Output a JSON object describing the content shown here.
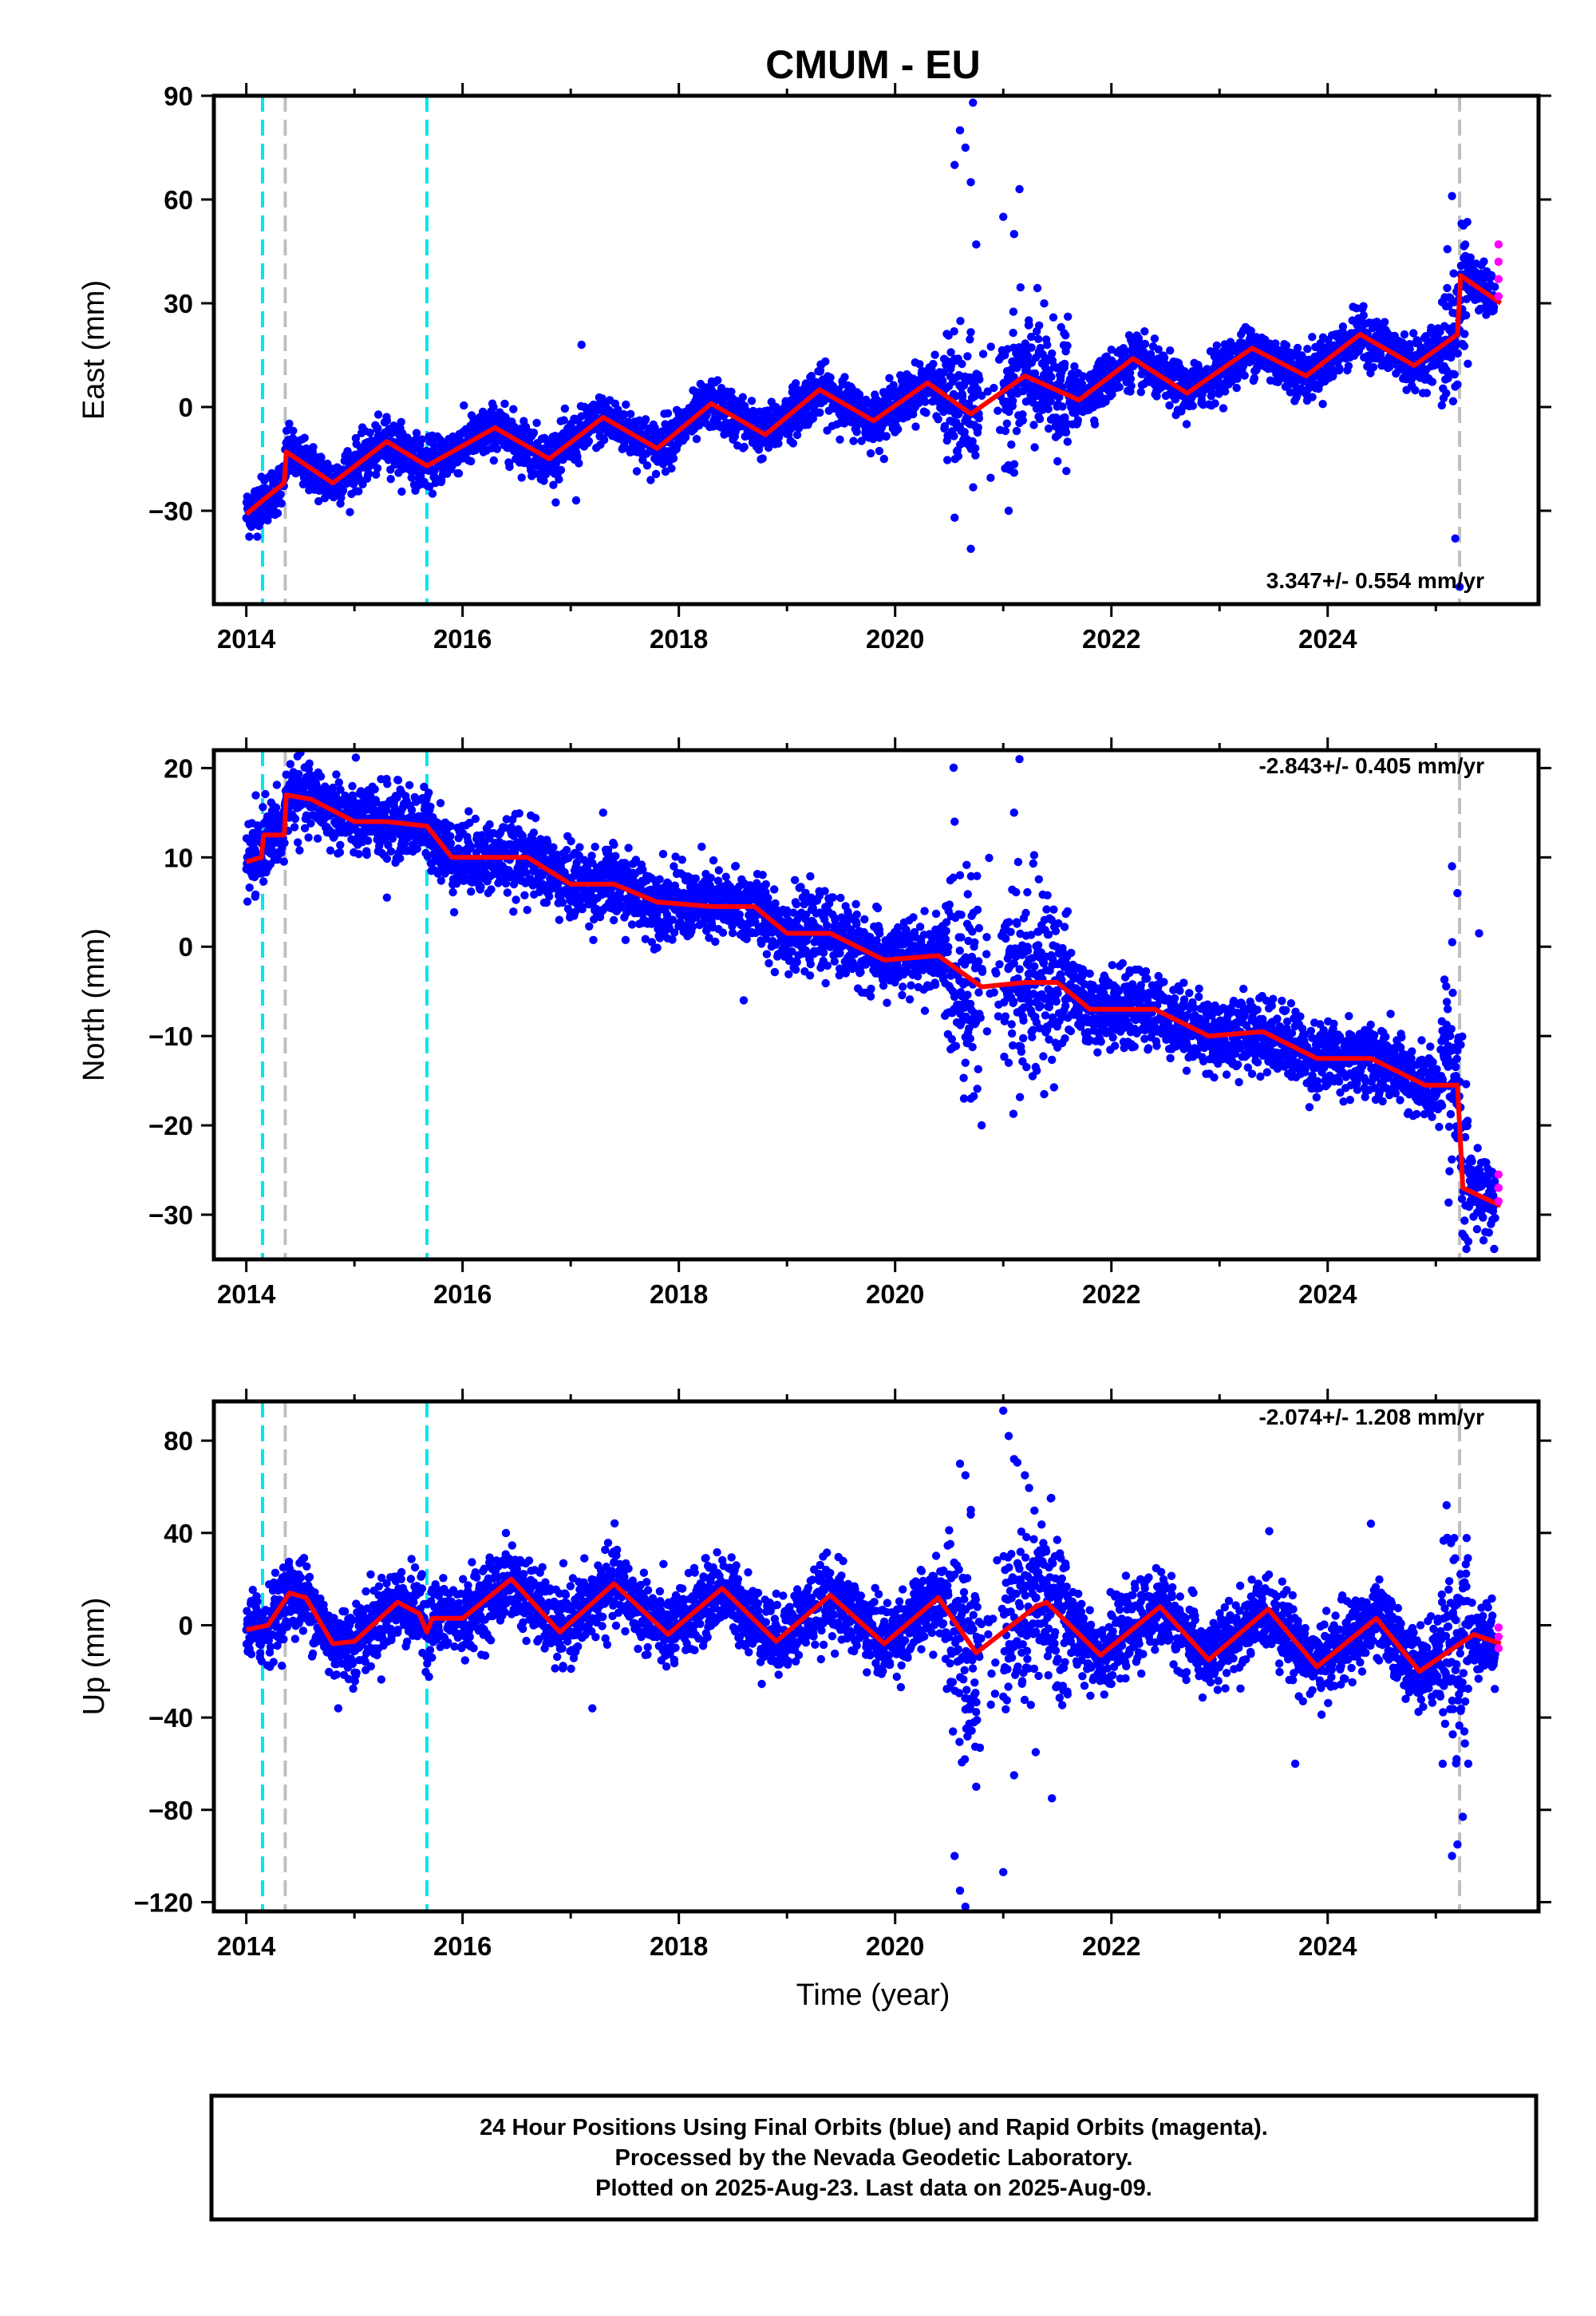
{
  "title": "CMUM - EU",
  "xlabel": "Time (year)",
  "footer": {
    "line1": "24 Hour Positions Using Final Orbits (blue) and Rapid Orbits (magenta).",
    "line2": "Processed by the Nevada Geodetic Laboratory.",
    "line3": "Plotted on 2025-Aug-23. Last data on 2025-Aug-09."
  },
  "colors": {
    "final": "#0000ff",
    "rapid": "#ff00ff",
    "model": "#ff0000",
    "steps_equipment": "#00e5ee",
    "steps_earthquake": "#bfbfbf"
  },
  "chart_data": [
    {
      "type": "scatter",
      "component": "east",
      "ylabel": "East (mm)",
      "rate": "3.347+/- 0.554 mm/yr",
      "xlim": [
        2013.7,
        2025.95
      ],
      "ylim": [
        -57,
        90
      ],
      "xticks": [
        2014,
        2016,
        2018,
        2020,
        2022,
        2024
      ],
      "xtick_labels": [
        "2014",
        "2016",
        "2018",
        "2020",
        "2022",
        "2024"
      ],
      "yticks": [
        -30,
        0,
        30,
        60,
        90
      ],
      "ytick_labels": [
        "−30",
        "0",
        "30",
        "60",
        "90"
      ],
      "equipment_steps": [
        2014.15,
        2015.67
      ],
      "earthquake_steps": [
        2014.36,
        2025.22
      ],
      "trend": {
        "intercept_2014": -26,
        "rate": 3.347
      },
      "seasonal": {
        "amplitude": 5.5,
        "peak_phase": 0.3
      },
      "scatter": 3.5,
      "offsets": [
        {
          "t": 2014.36,
          "dy": 9
        },
        {
          "t": 2025.22,
          "dy": 12
        }
      ],
      "model_points": [
        [
          2014.0,
          -31
        ],
        [
          2014.15,
          -27
        ],
        [
          2014.35,
          -22
        ],
        [
          2014.37,
          -13
        ],
        [
          2014.8,
          -22
        ],
        [
          2015.3,
          -10
        ],
        [
          2015.67,
          -17
        ],
        [
          2016.3,
          -6
        ],
        [
          2016.8,
          -15
        ],
        [
          2017.3,
          -3
        ],
        [
          2017.8,
          -12
        ],
        [
          2018.3,
          1
        ],
        [
          2018.8,
          -8
        ],
        [
          2019.3,
          5
        ],
        [
          2019.8,
          -4
        ],
        [
          2020.3,
          7
        ],
        [
          2020.7,
          -2
        ],
        [
          2021.2,
          9
        ],
        [
          2021.7,
          2
        ],
        [
          2022.2,
          14
        ],
        [
          2022.7,
          4
        ],
        [
          2023.3,
          17
        ],
        [
          2023.8,
          9
        ],
        [
          2024.3,
          21
        ],
        [
          2024.8,
          12
        ],
        [
          2025.2,
          21
        ],
        [
          2025.23,
          38
        ],
        [
          2025.6,
          30
        ]
      ],
      "outliers": [
        [
          2020.55,
          70
        ],
        [
          2020.6,
          80
        ],
        [
          2020.65,
          75
        ],
        [
          2020.7,
          65
        ],
        [
          2020.72,
          88
        ],
        [
          2020.75,
          47
        ],
        [
          2020.55,
          -32
        ],
        [
          2020.7,
          -41
        ],
        [
          2021.0,
          55
        ],
        [
          2021.1,
          50
        ],
        [
          2021.15,
          63
        ],
        [
          2021.05,
          -30
        ],
        [
          2021.1,
          -19
        ],
        [
          2025.15,
          61
        ],
        [
          2025.18,
          -38
        ],
        [
          2025.22,
          -52
        ],
        [
          2017.1,
          18
        ],
        [
          2017.05,
          -27
        ]
      ],
      "rapid_points": [
        [
          2025.58,
          47
        ],
        [
          2025.58,
          42
        ],
        [
          2025.58,
          37
        ],
        [
          2025.58,
          32
        ]
      ]
    },
    {
      "type": "scatter",
      "component": "north",
      "ylabel": "North (mm)",
      "rate": "-2.843+/- 0.405 mm/yr",
      "xlim": [
        2013.7,
        2025.95
      ],
      "ylim": [
        -35,
        22
      ],
      "xticks": [
        2014,
        2016,
        2018,
        2020,
        2022,
        2024
      ],
      "xtick_labels": [
        "2014",
        "2016",
        "2018",
        "2020",
        "2022",
        "2024"
      ],
      "yticks": [
        -30,
        -20,
        -10,
        0,
        10,
        20
      ],
      "ytick_labels": [
        "−30",
        "−20",
        "−10",
        "0",
        "10",
        "20"
      ],
      "equipment_steps": [
        2014.15,
        2015.67
      ],
      "earthquake_steps": [
        2014.36,
        2025.22
      ],
      "scatter": 2.0,
      "model_points": [
        [
          2014.0,
          9.5
        ],
        [
          2014.14,
          10
        ],
        [
          2014.16,
          12.5
        ],
        [
          2014.35,
          12.5
        ],
        [
          2014.37,
          17
        ],
        [
          2014.6,
          16.5
        ],
        [
          2015.0,
          14
        ],
        [
          2015.3,
          14
        ],
        [
          2015.67,
          13.5
        ],
        [
          2015.9,
          10
        ],
        [
          2016.3,
          10
        ],
        [
          2016.6,
          10
        ],
        [
          2017.0,
          7
        ],
        [
          2017.4,
          7
        ],
        [
          2017.8,
          5
        ],
        [
          2018.3,
          4.5
        ],
        [
          2018.7,
          4.5
        ],
        [
          2019.0,
          1.5
        ],
        [
          2019.4,
          1.5
        ],
        [
          2019.9,
          -1.5
        ],
        [
          2020.4,
          -1
        ],
        [
          2020.8,
          -4.5
        ],
        [
          2021.2,
          -4
        ],
        [
          2021.5,
          -4
        ],
        [
          2021.8,
          -7
        ],
        [
          2022.4,
          -7
        ],
        [
          2022.9,
          -10
        ],
        [
          2023.4,
          -9.5
        ],
        [
          2023.9,
          -12.5
        ],
        [
          2024.4,
          -12.5
        ],
        [
          2024.9,
          -15.5
        ],
        [
          2025.2,
          -15.5
        ],
        [
          2025.25,
          -27
        ],
        [
          2025.6,
          -29
        ]
      ],
      "outliers": [
        [
          2020.55,
          14
        ],
        [
          2020.6,
          8
        ],
        [
          2020.65,
          -13
        ],
        [
          2020.7,
          -17
        ],
        [
          2020.8,
          -20
        ],
        [
          2021.1,
          15
        ],
        [
          2021.15,
          21
        ],
        [
          2021.05,
          -13
        ],
        [
          2025.15,
          9
        ],
        [
          2025.2,
          6
        ],
        [
          2025.4,
          1.5
        ],
        [
          2025.3,
          -33
        ],
        [
          2015.3,
          5.5
        ],
        [
          2017.3,
          15
        ],
        [
          2018.6,
          -6
        ]
      ],
      "rapid_points": [
        [
          2025.58,
          -25.5
        ],
        [
          2025.58,
          -27
        ],
        [
          2025.58,
          -28.5
        ]
      ]
    },
    {
      "type": "scatter",
      "component": "up",
      "ylabel": "Up (mm)",
      "rate": "-2.074+/- 1.208 mm/yr",
      "xlim": [
        2013.7,
        2025.95
      ],
      "ylim": [
        -124,
        97
      ],
      "xticks": [
        2014,
        2016,
        2018,
        2020,
        2022,
        2024
      ],
      "xtick_labels": [
        "2014",
        "2016",
        "2018",
        "2020",
        "2022",
        "2024"
      ],
      "yticks": [
        -120,
        -80,
        -40,
        0,
        40,
        80
      ],
      "ytick_labels": [
        "−120",
        "−80",
        "−40",
        "0",
        "40",
        "80"
      ],
      "equipment_steps": [
        2014.15,
        2015.67
      ],
      "earthquake_steps": [
        2014.36,
        2025.22
      ],
      "scatter": 8.0,
      "model_points": [
        [
          2014.0,
          -2
        ],
        [
          2014.2,
          0
        ],
        [
          2014.4,
          14
        ],
        [
          2014.55,
          12
        ],
        [
          2014.8,
          -8
        ],
        [
          2015.0,
          -7
        ],
        [
          2015.4,
          10
        ],
        [
          2015.6,
          5
        ],
        [
          2015.67,
          -3
        ],
        [
          2015.72,
          3
        ],
        [
          2016.0,
          3
        ],
        [
          2016.45,
          20
        ],
        [
          2016.9,
          -3
        ],
        [
          2017.4,
          18
        ],
        [
          2017.9,
          -4
        ],
        [
          2018.4,
          16
        ],
        [
          2018.9,
          -7
        ],
        [
          2019.4,
          13
        ],
        [
          2019.9,
          -8
        ],
        [
          2020.4,
          12
        ],
        [
          2020.75,
          -12
        ],
        [
          2021.3,
          8
        ],
        [
          2021.4,
          10
        ],
        [
          2021.9,
          -13
        ],
        [
          2022.45,
          8
        ],
        [
          2022.9,
          -15
        ],
        [
          2023.45,
          7
        ],
        [
          2023.9,
          -18
        ],
        [
          2024.45,
          3
        ],
        [
          2024.85,
          -20
        ],
        [
          2025.35,
          -4
        ],
        [
          2025.6,
          -8
        ]
      ],
      "outliers": [
        [
          2020.6,
          70
        ],
        [
          2020.65,
          65
        ],
        [
          2020.7,
          50
        ],
        [
          2020.55,
          -100
        ],
        [
          2020.6,
          -115
        ],
        [
          2020.65,
          -122
        ],
        [
          2020.75,
          -70
        ],
        [
          2021.0,
          93
        ],
        [
          2021.05,
          82
        ],
        [
          2021.1,
          72
        ],
        [
          2021.2,
          65
        ],
        [
          2021.0,
          -107
        ],
        [
          2021.1,
          -65
        ],
        [
          2021.45,
          -75
        ],
        [
          2021.3,
          -55
        ],
        [
          2025.1,
          52
        ],
        [
          2025.15,
          -100
        ],
        [
          2025.2,
          -95
        ],
        [
          2025.25,
          -83
        ],
        [
          2025.3,
          -60
        ],
        [
          2024.4,
          44
        ],
        [
          2017.2,
          -36
        ],
        [
          2014.85,
          -36
        ],
        [
          2023.7,
          -60
        ]
      ],
      "rapid_points": [
        [
          2025.58,
          -1
        ],
        [
          2025.58,
          -5
        ],
        [
          2025.58,
          -10
        ]
      ]
    }
  ]
}
